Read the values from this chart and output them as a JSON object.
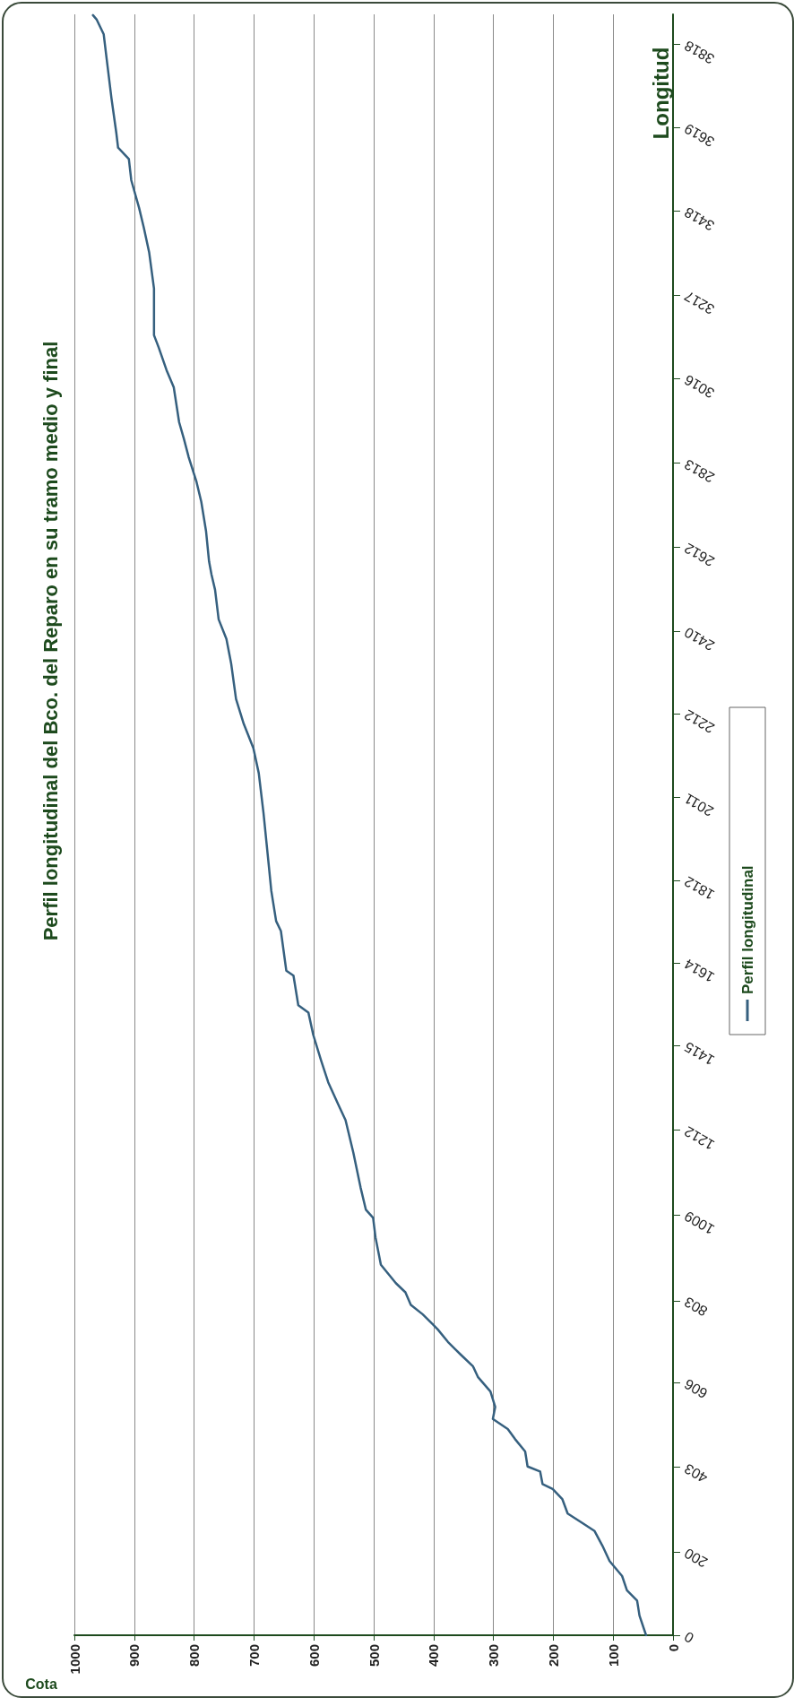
{
  "chart_data": {
    "type": "line",
    "title": "Perfil longitudinal del Bco. del Reparo en su tramo medio y final",
    "xlabel": "Cota",
    "ylabel": "Longitud",
    "x": [
      45,
      56,
      60,
      77,
      85,
      106,
      118,
      131,
      151,
      176,
      185,
      201,
      218,
      222,
      243,
      247,
      264,
      276,
      301,
      297,
      305,
      326,
      334,
      355,
      376,
      393,
      401,
      418,
      438,
      447,
      463,
      488,
      497,
      501,
      513,
      522,
      534,
      547,
      559,
      576,
      588,
      601,
      609,
      626,
      634,
      646,
      655,
      663,
      671,
      676,
      684,
      692,
      701,
      717,
      730,
      738,
      746,
      759,
      765,
      771,
      775,
      780,
      788,
      796,
      809,
      817,
      825,
      834,
      846,
      859,
      867,
      867,
      875,
      884,
      892,
      905,
      909,
      927,
      930,
      938,
      946,
      951,
      963,
      969
    ],
    "series": [
      {
        "name": "Perfil longitudinal",
        "color": "#36607f",
        "values": [
          0,
          47,
          83,
          108,
          142,
          178,
          215,
          250,
          269,
          292,
          327,
          351,
          363,
          393,
          405,
          441,
          471,
          495,
          519,
          548,
          585,
          620,
          645,
          674,
          704,
          734,
          746,
          770,
          793,
          823,
          845,
          889,
          955,
          1002,
          1021,
          1075,
          1158,
          1236,
          1273,
          1327,
          1380,
          1441,
          1494,
          1512,
          1583,
          1595,
          1690,
          1714,
          1786,
          1858,
          1972,
          2069,
          2129,
          2187,
          2247,
          2331,
          2391,
          2438,
          2509,
          2546,
          2577,
          2649,
          2720,
          2768,
          2827,
          2871,
          2911,
          2995,
          3036,
          3090,
          3120,
          3232,
          3318,
          3378,
          3426,
          3492,
          3543,
          3570,
          3606,
          3688,
          3782,
          3842,
          3878,
          3888
        ]
      }
    ],
    "xlim": [
      1000,
      0
    ],
    "xticks": [
      0,
      100,
      200,
      300,
      400,
      500,
      600,
      700,
      800,
      900,
      1000
    ],
    "ylim": [
      0,
      3890
    ],
    "yticks": [
      0,
      200,
      403,
      606,
      803,
      1009,
      1212,
      1415,
      1614,
      1812,
      2011,
      2212,
      2410,
      2612,
      2813,
      3016,
      3217,
      3418,
      3619,
      3818
    ],
    "grid": "x",
    "legend": "right",
    "marker": "none",
    "line_style": "solid"
  }
}
